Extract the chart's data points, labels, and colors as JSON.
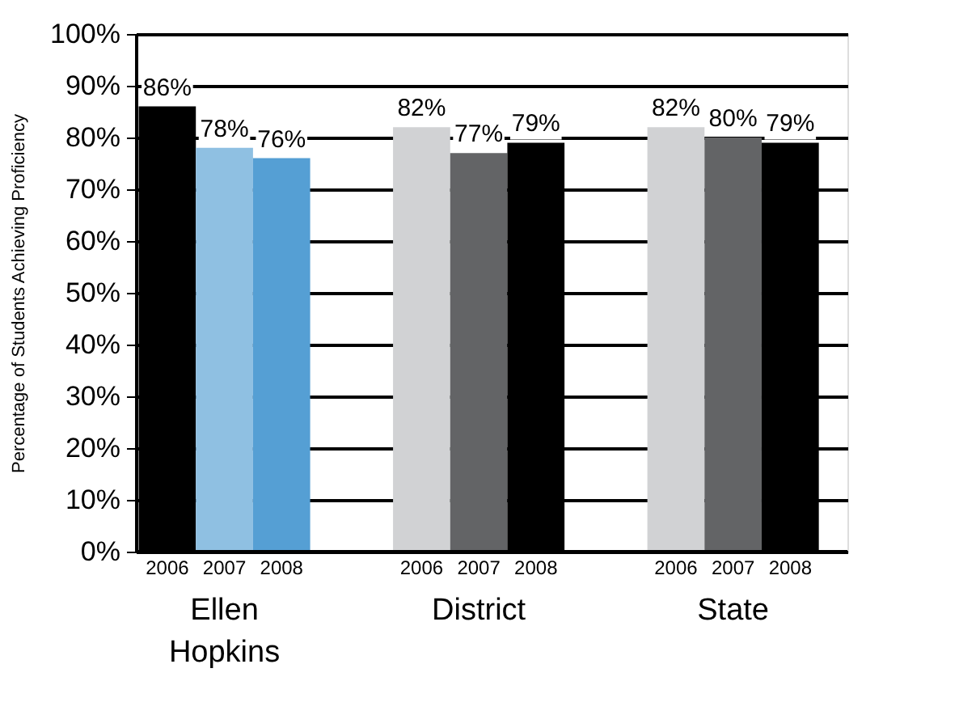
{
  "chart_data": {
    "type": "bar",
    "ylabel": "Percentage of Students Achieving Proficiency",
    "categories": [
      "2006",
      "2007",
      "2008",
      "2006",
      "2007",
      "2008",
      "2006",
      "2007",
      "2008"
    ],
    "values": [
      86,
      78,
      76,
      82,
      77,
      79,
      82,
      80,
      79
    ],
    "colors": [
      "#000000",
      "#8fc0e2",
      "#559fd4",
      "#d1d2d4",
      "#636466",
      "#000000",
      "#d1d2d4",
      "#636466",
      "#000000"
    ],
    "value_labels": [
      "86%",
      "78%",
      "76%",
      "82%",
      "77%",
      "79%",
      "82%",
      "80%",
      "79%"
    ],
    "annotations": [
      "Ellen Hopkins",
      "District",
      "State"
    ],
    "ylim": [
      0,
      100
    ],
    "yticks": [
      {
        "value": 0,
        "label": "0%"
      },
      {
        "value": 10,
        "label": "10%"
      },
      {
        "value": 20,
        "label": "20%"
      },
      {
        "value": 30,
        "label": "30%"
      },
      {
        "value": 40,
        "label": "40%"
      },
      {
        "value": 50,
        "label": "50%"
      },
      {
        "value": 60,
        "label": "60%"
      },
      {
        "value": 70,
        "label": "70%"
      },
      {
        "value": 80,
        "label": "80%"
      },
      {
        "value": 90,
        "label": "90%"
      },
      {
        "value": 100,
        "label": "100%"
      }
    ],
    "grid": "y",
    "legend": false
  }
}
